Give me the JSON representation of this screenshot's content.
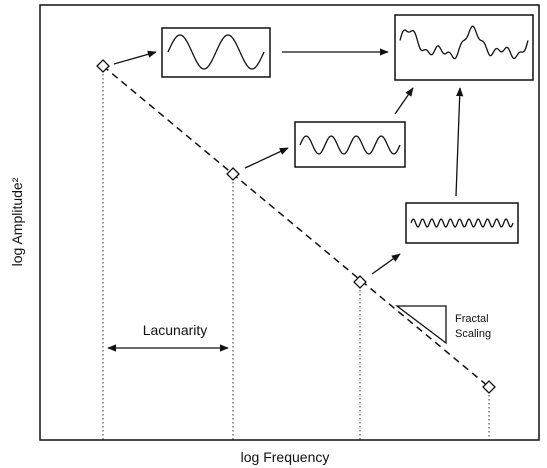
{
  "axes": {
    "x_label": "log Frequency",
    "y_label": "log Amplitude²"
  },
  "annotations": {
    "lacunarity": "Lacunarity",
    "fractal_scaling": [
      "Fractal",
      "Scaling"
    ]
  }
}
